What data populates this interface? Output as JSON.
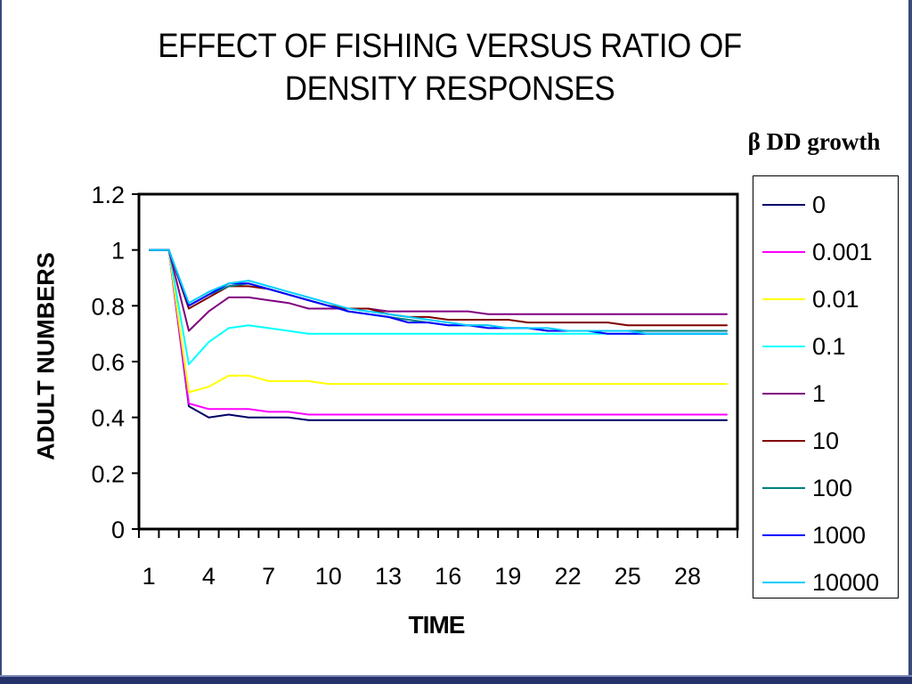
{
  "title_line1": "EFFECT OF FISHING VERSUS RATIO OF",
  "title_line2": "DENSITY RESPONSES",
  "legend_title": "β DD growth",
  "chart_data": {
    "type": "line",
    "title": "EFFECT OF FISHING VERSUS RATIO OF DENSITY RESPONSES",
    "xlabel": "TIME",
    "ylabel": "ADULT NUMBERS",
    "xlim": [
      1,
      31
    ],
    "ylim": [
      0,
      1.2
    ],
    "xticks": [
      1,
      4,
      7,
      10,
      13,
      16,
      19,
      22,
      25,
      28
    ],
    "yticks": [
      0,
      0.2,
      0.4,
      0.6,
      0.8,
      1,
      1.2
    ],
    "ytick_labels": [
      "0",
      "0.2",
      "0.4",
      "0.6",
      "0.8",
      "1",
      "1.2"
    ],
    "x": [
      1,
      2,
      3,
      4,
      5,
      6,
      7,
      8,
      9,
      10,
      11,
      12,
      13,
      14,
      15,
      16,
      17,
      18,
      19,
      20,
      21,
      22,
      23,
      24,
      25,
      26,
      27,
      28,
      29,
      30
    ],
    "legend_position": "right",
    "grid": false,
    "series": [
      {
        "name": "0",
        "color": "#000066",
        "values": [
          1.0,
          1.0,
          0.44,
          0.4,
          0.41,
          0.4,
          0.4,
          0.4,
          0.39,
          0.39,
          0.39,
          0.39,
          0.39,
          0.39,
          0.39,
          0.39,
          0.39,
          0.39,
          0.39,
          0.39,
          0.39,
          0.39,
          0.39,
          0.39,
          0.39,
          0.39,
          0.39,
          0.39,
          0.39,
          0.39
        ]
      },
      {
        "name": "0.001",
        "color": "#ff00ff",
        "values": [
          1.0,
          1.0,
          0.45,
          0.43,
          0.43,
          0.43,
          0.42,
          0.42,
          0.41,
          0.41,
          0.41,
          0.41,
          0.41,
          0.41,
          0.41,
          0.41,
          0.41,
          0.41,
          0.41,
          0.41,
          0.41,
          0.41,
          0.41,
          0.41,
          0.41,
          0.41,
          0.41,
          0.41,
          0.41,
          0.41
        ]
      },
      {
        "name": "0.01",
        "color": "#ffff00",
        "values": [
          1.0,
          1.0,
          0.49,
          0.51,
          0.55,
          0.55,
          0.53,
          0.53,
          0.53,
          0.52,
          0.52,
          0.52,
          0.52,
          0.52,
          0.52,
          0.52,
          0.52,
          0.52,
          0.52,
          0.52,
          0.52,
          0.52,
          0.52,
          0.52,
          0.52,
          0.52,
          0.52,
          0.52,
          0.52,
          0.52
        ]
      },
      {
        "name": "0.1",
        "color": "#00ffff",
        "values": [
          1.0,
          1.0,
          0.59,
          0.67,
          0.72,
          0.73,
          0.72,
          0.71,
          0.7,
          0.7,
          0.7,
          0.7,
          0.7,
          0.7,
          0.7,
          0.7,
          0.7,
          0.7,
          0.7,
          0.7,
          0.7,
          0.7,
          0.7,
          0.7,
          0.7,
          0.7,
          0.7,
          0.7,
          0.7,
          0.7
        ]
      },
      {
        "name": "1",
        "color": "#800080",
        "values": [
          1.0,
          1.0,
          0.71,
          0.78,
          0.83,
          0.83,
          0.82,
          0.81,
          0.79,
          0.79,
          0.79,
          0.79,
          0.78,
          0.78,
          0.78,
          0.78,
          0.78,
          0.77,
          0.77,
          0.77,
          0.77,
          0.77,
          0.77,
          0.77,
          0.77,
          0.77,
          0.77,
          0.77,
          0.77,
          0.77
        ]
      },
      {
        "name": "10",
        "color": "#800000",
        "values": [
          1.0,
          1.0,
          0.79,
          0.83,
          0.87,
          0.87,
          0.86,
          0.84,
          0.82,
          0.8,
          0.79,
          0.79,
          0.77,
          0.76,
          0.76,
          0.75,
          0.75,
          0.75,
          0.75,
          0.74,
          0.74,
          0.74,
          0.74,
          0.74,
          0.73,
          0.73,
          0.73,
          0.73,
          0.73,
          0.73
        ]
      },
      {
        "name": "100",
        "color": "#008080",
        "values": [
          1.0,
          1.0,
          0.8,
          0.84,
          0.87,
          0.88,
          0.86,
          0.84,
          0.82,
          0.8,
          0.78,
          0.77,
          0.76,
          0.75,
          0.74,
          0.73,
          0.73,
          0.73,
          0.72,
          0.72,
          0.71,
          0.71,
          0.71,
          0.71,
          0.71,
          0.71,
          0.71,
          0.71,
          0.71,
          0.71
        ]
      },
      {
        "name": "1000",
        "color": "#0000ff",
        "values": [
          1.0,
          1.0,
          0.8,
          0.84,
          0.88,
          0.88,
          0.86,
          0.84,
          0.82,
          0.8,
          0.78,
          0.77,
          0.76,
          0.74,
          0.74,
          0.73,
          0.73,
          0.72,
          0.72,
          0.72,
          0.71,
          0.71,
          0.71,
          0.7,
          0.7,
          0.7,
          0.7,
          0.7,
          0.7,
          0.7
        ]
      },
      {
        "name": "10000",
        "color": "#00ccff",
        "values": [
          1.0,
          1.0,
          0.81,
          0.85,
          0.88,
          0.89,
          0.87,
          0.85,
          0.83,
          0.81,
          0.79,
          0.78,
          0.77,
          0.76,
          0.75,
          0.74,
          0.73,
          0.73,
          0.72,
          0.72,
          0.72,
          0.71,
          0.71,
          0.71,
          0.71,
          0.7,
          0.7,
          0.7,
          0.7,
          0.7
        ]
      }
    ]
  }
}
